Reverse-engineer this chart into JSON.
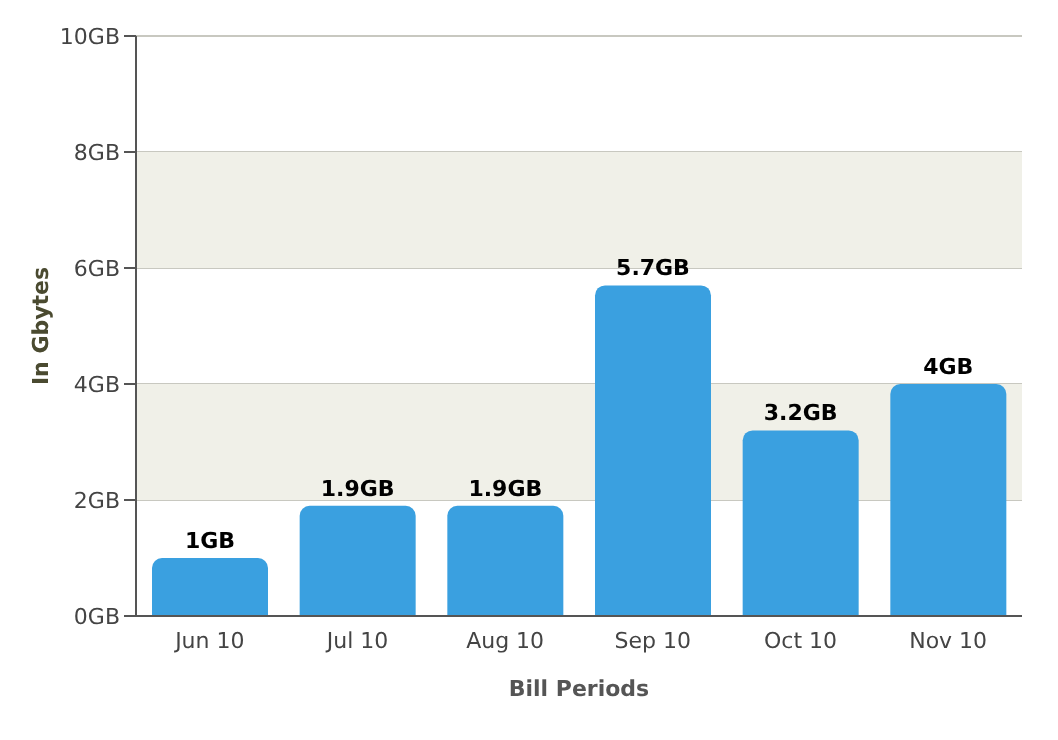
{
  "chart_data": {
    "type": "bar",
    "xlabel": "Bill Periods",
    "ylabel": "In Gbytes",
    "categories": [
      "Jun 10",
      "Jul 10",
      "Aug 10",
      "Sep 10",
      "Oct 10",
      "Nov 10"
    ],
    "values": [
      1,
      1.9,
      1.9,
      5.7,
      3.2,
      4
    ],
    "value_labels": [
      "1GB",
      "1.9GB",
      "1.9GB",
      "5.7GB",
      "3.2GB",
      "4GB"
    ],
    "color": "#3aa0e0",
    "ylim": [
      0,
      10
    ],
    "yticks": [
      {
        "value": 0,
        "label": "0GB"
      },
      {
        "value": 2,
        "label": "2GB"
      },
      {
        "value": 4,
        "label": "4GB"
      },
      {
        "value": 6,
        "label": "6GB"
      },
      {
        "value": 8,
        "label": "8GB"
      },
      {
        "value": 10,
        "label": "10GB"
      }
    ],
    "bands": [
      {
        "axis": "y",
        "from": 2,
        "to": 4,
        "color": "#f0f0e8"
      },
      {
        "axis": "y",
        "from": 6,
        "to": 8,
        "color": "#f0f0e8"
      }
    ],
    "grid": "y"
  }
}
